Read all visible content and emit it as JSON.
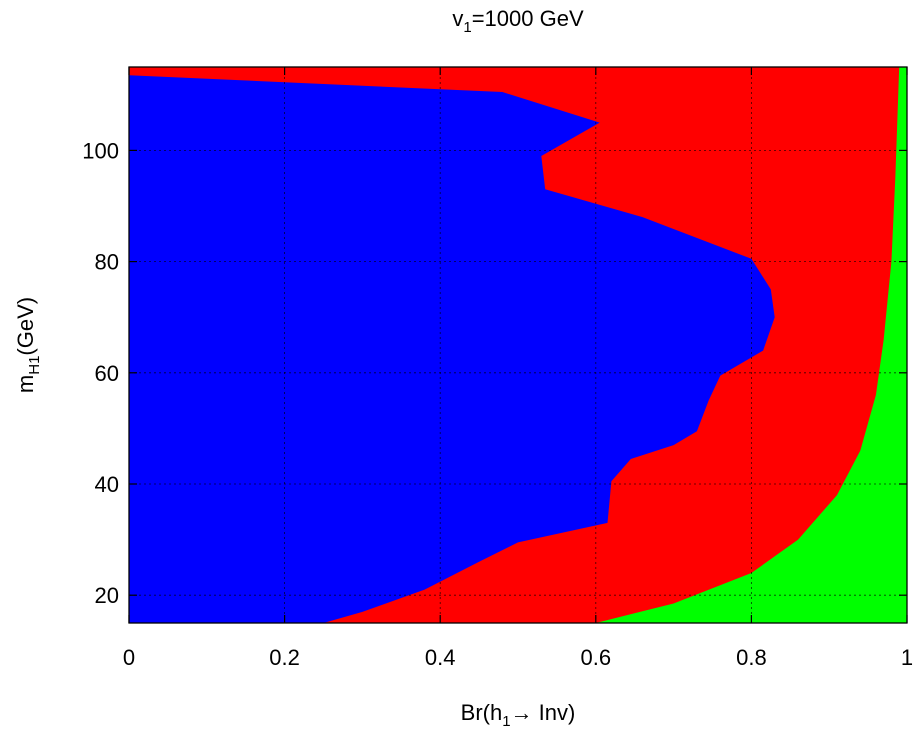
{
  "chart_data": {
    "type": "area",
    "title": {
      "main": "v",
      "sub": "1",
      "rest": "=1000 GeV"
    },
    "xlabel": {
      "pre": "Br(h",
      "sub": "1",
      "post": "→ Inv)"
    },
    "ylabel": {
      "pre": "m",
      "sub": "H1",
      "post": "(GeV)"
    },
    "xlim": [
      0,
      1
    ],
    "ylim": [
      15,
      115
    ],
    "x_ticks": [
      {
        "value": 0,
        "label": "0"
      },
      {
        "value": 0.2,
        "label": "0.2"
      },
      {
        "value": 0.4,
        "label": "0.4"
      },
      {
        "value": 0.6,
        "label": "0.6"
      },
      {
        "value": 0.8,
        "label": "0.8"
      },
      {
        "value": 1,
        "label": "1"
      }
    ],
    "y_ticks": [
      {
        "value": 20,
        "label": "20"
      },
      {
        "value": 40,
        "label": "40"
      },
      {
        "value": 60,
        "label": "60"
      },
      {
        "value": 80,
        "label": "80"
      },
      {
        "value": 100,
        "label": "100"
      }
    ],
    "grid": true,
    "regions": [
      {
        "id": "red",
        "color": "#ff0000",
        "fill_entire_plot": true,
        "points": []
      },
      {
        "id": "green",
        "color": "#00ff00",
        "points": [
          [
            0.6,
            15
          ],
          [
            0.7,
            18.5
          ],
          [
            0.8,
            24
          ],
          [
            0.86,
            30
          ],
          [
            0.91,
            38
          ],
          [
            0.94,
            46
          ],
          [
            0.96,
            56
          ],
          [
            0.97,
            66
          ],
          [
            0.98,
            80
          ],
          [
            0.985,
            95
          ],
          [
            0.99,
            115
          ],
          [
            1,
            115
          ],
          [
            1,
            15
          ]
        ]
      },
      {
        "id": "blue",
        "color": "#0000ff",
        "points": [
          [
            0,
            15
          ],
          [
            0,
            113.5
          ],
          [
            0.48,
            110.5
          ],
          [
            0.605,
            105
          ],
          [
            0.53,
            99
          ],
          [
            0.535,
            93
          ],
          [
            0.66,
            88
          ],
          [
            0.8,
            80.5
          ],
          [
            0.825,
            75
          ],
          [
            0.83,
            70
          ],
          [
            0.815,
            64
          ],
          [
            0.76,
            59.5
          ],
          [
            0.745,
            55
          ],
          [
            0.73,
            49.5
          ],
          [
            0.7,
            47
          ],
          [
            0.645,
            44.5
          ],
          [
            0.62,
            40.5
          ],
          [
            0.615,
            33
          ],
          [
            0.5,
            29.5
          ],
          [
            0.45,
            26
          ],
          [
            0.38,
            21
          ],
          [
            0.3,
            17
          ],
          [
            0.25,
            15
          ]
        ]
      }
    ]
  }
}
